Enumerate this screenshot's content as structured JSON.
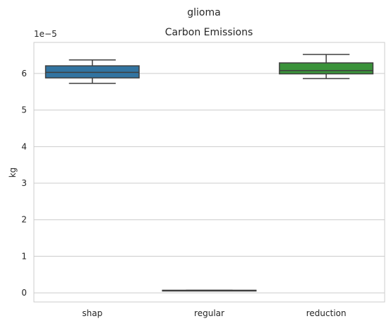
{
  "suptitle": "glioma",
  "chart_data": {
    "type": "box",
    "title": "Carbon Emissions",
    "xlabel": "",
    "ylabel": "kg",
    "offset_text": "1e−5",
    "y_scale_factor": 1e-05,
    "ylim": [
      -0.25,
      6.85
    ],
    "yticks": [
      0,
      1,
      2,
      3,
      4,
      5,
      6
    ],
    "grid": true,
    "categories": [
      "shap",
      "regular",
      "reduction"
    ],
    "series": [
      {
        "category": "shap",
        "color": "#3274a1",
        "min": 5.73,
        "q1": 5.88,
        "median": 6.03,
        "q3": 6.21,
        "max": 6.37
      },
      {
        "category": "regular",
        "color": "#e1812c",
        "min": 0.06,
        "q1": 0.06,
        "median": 0.06,
        "q3": 0.07,
        "max": 0.07
      },
      {
        "category": "reduction",
        "color": "#3a923a",
        "min": 5.86,
        "q1": 5.99,
        "median": 6.08,
        "q3": 6.29,
        "max": 6.52
      }
    ]
  }
}
